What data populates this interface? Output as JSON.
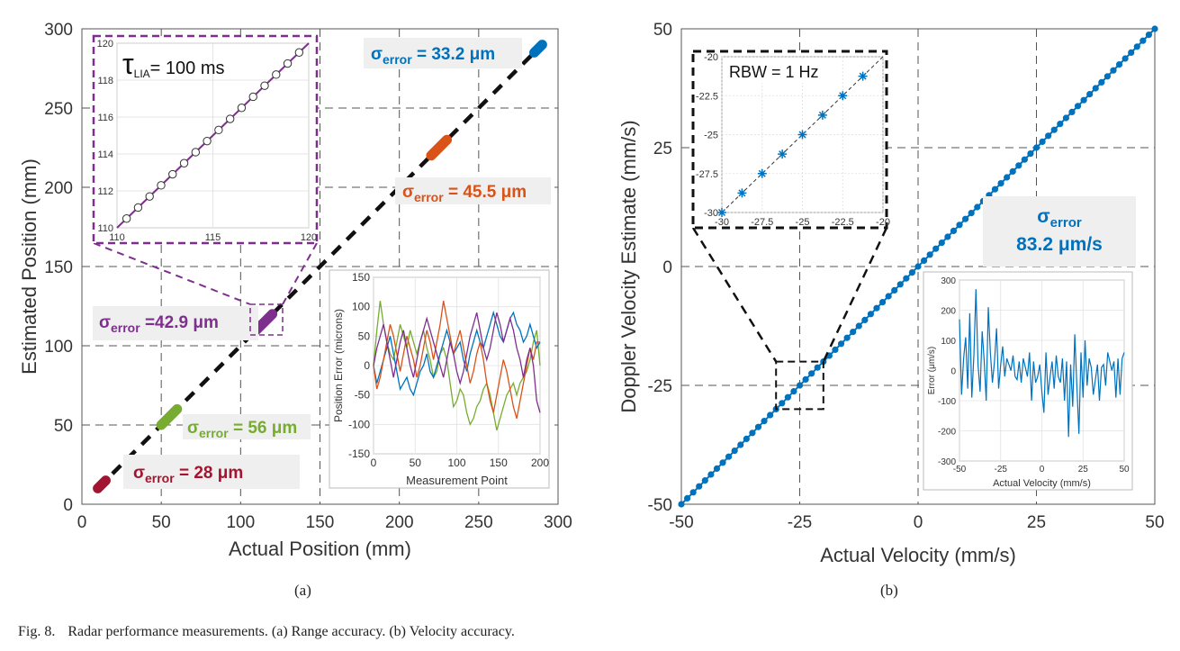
{
  "chart_data": [
    {
      "type": "scatter",
      "panel": "(a)",
      "xlabel": "Actual Position (mm)",
      "ylabel": "Estimated Position (mm)",
      "xlim": [
        0,
        300
      ],
      "ylim": [
        0,
        300
      ],
      "xticks": [
        0,
        50,
        100,
        150,
        200,
        250,
        300
      ],
      "yticks": [
        0,
        50,
        100,
        150,
        200,
        250,
        300
      ],
      "grid": "dashed",
      "ideal_line": {
        "from": [
          10,
          10
        ],
        "to": [
          290,
          290
        ]
      },
      "clusters": [
        {
          "name": "red",
          "color": "#a2142f",
          "x_range": [
            10,
            15
          ],
          "sigma_prefix": "σ",
          "sigma_sub": "error",
          "sigma_text": " = 28 μm"
        },
        {
          "name": "green",
          "color": "#77ac30",
          "x_range": [
            50,
            60
          ],
          "sigma_prefix": "σ",
          "sigma_sub": "error",
          "sigma_text": " = 56 μm"
        },
        {
          "name": "purple",
          "color": "#7e2f8e",
          "x_range": [
            110,
            120
          ],
          "sigma_prefix": "σ",
          "sigma_sub": "error",
          "sigma_text": " =42.9 μm"
        },
        {
          "name": "orange",
          "color": "#d95319",
          "x_range": [
            220,
            230
          ],
          "sigma_prefix": "σ",
          "sigma_sub": "error",
          "sigma_text": " = 45.5 μm"
        },
        {
          "name": "blue",
          "color": "#0072bd",
          "x_range": [
            285,
            290
          ],
          "sigma_prefix": "σ",
          "sigma_sub": "error",
          "sigma_text": " = 33.2 μm"
        }
      ],
      "inset_zoom": {
        "label_symbol": "τ",
        "label_sub": "LIA",
        "label_text": "= 100 ms",
        "xlim": [
          110,
          120
        ],
        "ylim": [
          110,
          120
        ],
        "xticks": [
          110,
          115,
          120
        ],
        "yticks": [
          110,
          112,
          114,
          116,
          118,
          120
        ],
        "points_x": [
          110.5,
          111.1,
          111.7,
          112.3,
          112.9,
          113.5,
          114.1,
          114.7,
          115.3,
          115.9,
          116.5,
          117.1,
          117.7,
          118.3,
          118.9,
          119.5
        ]
      },
      "inset_error": {
        "xlabel": "Measurement Point",
        "ylabel": "Position Error (microns)",
        "xlim": [
          0,
          200
        ],
        "ylim": [
          -150,
          150
        ],
        "xticks": [
          0,
          50,
          100,
          150,
          200
        ],
        "yticks": [
          -150,
          -100,
          -50,
          0,
          50,
          100,
          150
        ],
        "series": [
          {
            "name": "green",
            "color": "#77ac30",
            "values": [
              0,
              60,
              110,
              70,
              40,
              20,
              10,
              40,
              70,
              50,
              30,
              60,
              40,
              20,
              40,
              60,
              30,
              10,
              -20,
              -10,
              20,
              30,
              10,
              -30,
              -70,
              -60,
              -40,
              -50,
              -80,
              -100,
              -90,
              -70,
              -60,
              -40,
              -30,
              -50,
              -80,
              -110,
              -90,
              -70,
              -50,
              -40,
              -30,
              -50,
              -30,
              -20,
              -10,
              10,
              40,
              60,
              0
            ]
          },
          {
            "name": "blue",
            "color": "#0072bd",
            "values": [
              0,
              -30,
              -10,
              10,
              30,
              50,
              20,
              -10,
              -40,
              -30,
              -20,
              -40,
              -50,
              -30,
              -10,
              0,
              20,
              -10,
              -20,
              0,
              20,
              40,
              60,
              40,
              20,
              30,
              40,
              10,
              -10,
              20,
              40,
              60,
              40,
              30,
              50,
              70,
              90,
              70,
              50,
              40,
              60,
              80,
              90,
              70,
              60,
              40,
              50,
              70,
              50,
              30,
              40
            ]
          },
          {
            "name": "orange",
            "color": "#d95319",
            "values": [
              0,
              -40,
              -20,
              10,
              40,
              70,
              50,
              20,
              -10,
              20,
              50,
              30,
              10,
              -20,
              0,
              30,
              60,
              40,
              10,
              40,
              70,
              110,
              80,
              50,
              20,
              40,
              60,
              30,
              0,
              -30,
              -10,
              20,
              40,
              10,
              -30,
              -60,
              -80,
              -50,
              -20,
              10,
              -10,
              -40,
              -70,
              -90,
              -60,
              -30,
              0,
              30,
              10,
              40,
              40
            ]
          },
          {
            "name": "purple",
            "color": "#7e2f8e",
            "values": [
              0,
              30,
              50,
              70,
              40,
              10,
              -20,
              10,
              40,
              60,
              30,
              0,
              -20,
              10,
              40,
              60,
              80,
              60,
              40,
              20,
              0,
              -20,
              10,
              40,
              20,
              -10,
              -30,
              -10,
              20,
              50,
              70,
              90,
              60,
              30,
              10,
              30,
              60,
              90,
              70,
              40,
              60,
              80,
              60,
              30,
              10,
              -20,
              10,
              30,
              0,
              -60,
              -80
            ]
          }
        ]
      }
    },
    {
      "type": "scatter",
      "panel": "(b)",
      "xlabel": "Actual Velocity (mm/s)",
      "ylabel": "Doppler Velocity Estimate (mm/s)",
      "xlim": [
        -50,
        50
      ],
      "ylim": [
        -50,
        50
      ],
      "xticks": [
        -50,
        -25,
        0,
        25,
        50
      ],
      "yticks": [
        -50,
        -25,
        0,
        25,
        50
      ],
      "grid": "dashed",
      "color": "#0072bd",
      "point_step": 1.25,
      "sigma_prefix": "σ",
      "sigma_sub": "error",
      "sigma_value": "83.2 μm/s",
      "zoom_box": {
        "x": [
          -30,
          -20
        ],
        "y": [
          -30,
          -20
        ]
      },
      "inset_zoom": {
        "label": "RBW  = 1 Hz",
        "xlim": [
          -30,
          -20
        ],
        "ylim": [
          -30,
          -20
        ],
        "xticks": [
          -30,
          -27.5,
          -25,
          -22.5,
          -20
        ],
        "yticks": [
          -30,
          -27.5,
          -25,
          -22.5,
          -20
        ],
        "xtick_labels": [
          "-30",
          "-27.5",
          "-25",
          "-22.5",
          "-20"
        ],
        "ytick_labels": [
          "-30",
          "-27.5",
          "-25",
          "-22.5",
          "-20"
        ],
        "points": [
          -30,
          -28.75,
          -27.5,
          -26.25,
          -25,
          -23.75,
          -22.5,
          -21.25
        ]
      },
      "inset_error": {
        "xlabel": "Actual Velocity (mm/s)",
        "ylabel": "Error (μm/s)",
        "xlim": [
          -50,
          50
        ],
        "ylim": [
          -300,
          300
        ],
        "xticks": [
          -50,
          -25,
          0,
          25,
          50
        ],
        "yticks": [
          -300,
          -200,
          -100,
          0,
          100,
          200,
          300
        ],
        "values": [
          170,
          -80,
          40,
          110,
          -60,
          190,
          -90,
          50,
          270,
          20,
          -70,
          130,
          30,
          -100,
          210,
          60,
          -40,
          30,
          140,
          -60,
          20,
          80,
          -20,
          40,
          20,
          0,
          50,
          -20,
          -30,
          30,
          -40,
          40,
          10,
          -20,
          60,
          -100,
          30,
          -40,
          -20,
          20,
          -70,
          -140,
          60,
          -80,
          -20,
          30,
          -60,
          50,
          -20,
          -40,
          40,
          -100,
          30,
          -220,
          20,
          -120,
          120,
          -50,
          -210,
          60,
          -90,
          100,
          -50,
          40,
          10,
          -80,
          -30,
          20,
          -100,
          10,
          20,
          -50,
          60,
          30,
          0,
          30,
          -90,
          40,
          -80,
          40,
          60
        ]
      }
    }
  ],
  "labels": {
    "panel_a": "(a)",
    "panel_b": "(b)"
  },
  "caption": {
    "prefix": "Fig. 8.",
    "text": "Radar performance measurements. (a) Range accuracy. (b) Velocity accuracy."
  }
}
